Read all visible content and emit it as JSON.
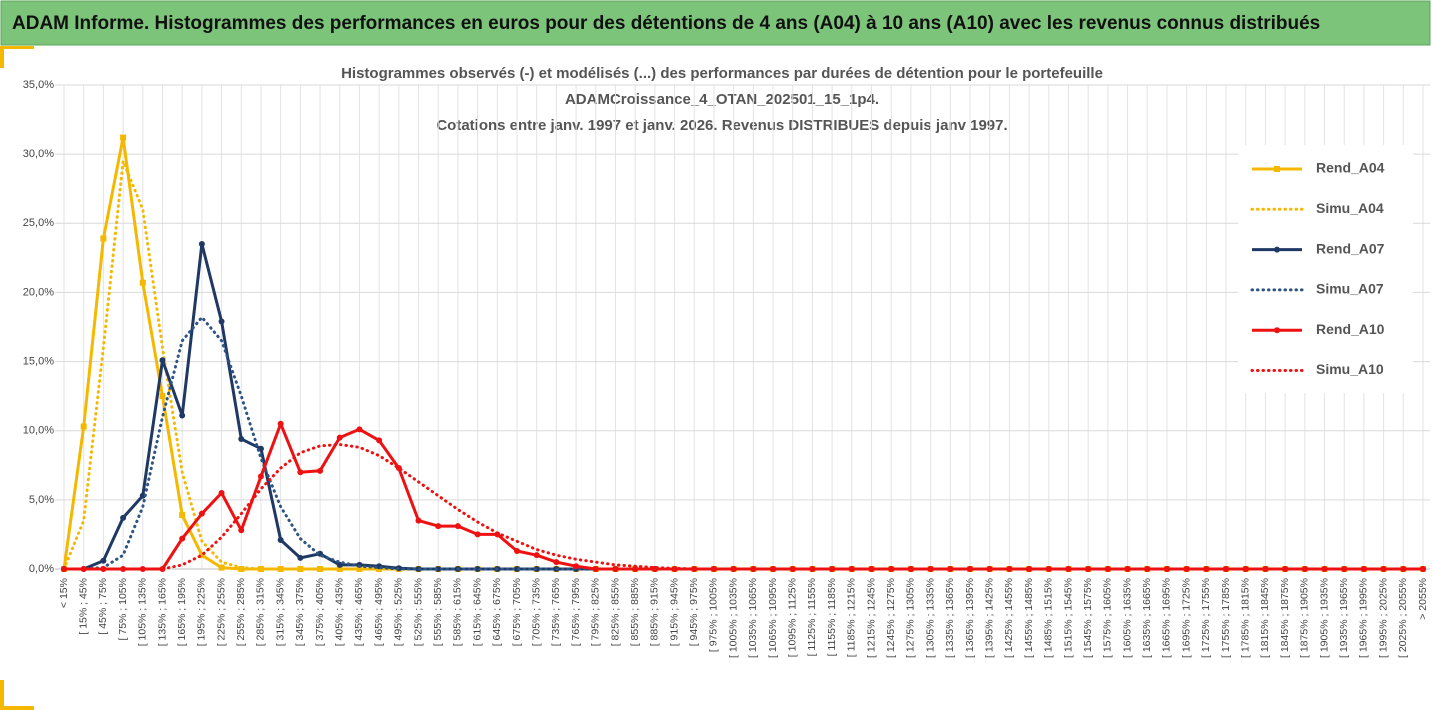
{
  "page_title": "ADAM Informe. Histogrammes des performances en euros pour des détentions de 4 ans (A04) à 10 ans (A10) avec les revenus connus distribués",
  "chart_data": {
    "type": "line",
    "title": [
      "Histogrammes observés (-) et modélisés (...) des performances par durées de détention pour le portefeuille",
      "ADAMCroissance_4_OTAN_202501_15_1p4.",
      "Cotations entre janv. 1997 et janv. 2026. Revenus DISTRIBUES depuis janv 1997."
    ],
    "categories": [
      "< 15%",
      "[ 15% ; 45%",
      "[ 45% ; 75%",
      "[ 75% ; 105%",
      "[ 105% ; 135%",
      "[ 135% ; 165%",
      "[ 165% ; 195%",
      "[ 195% ; 225%",
      "[ 225% ; 255%",
      "[ 255% ; 285%",
      "[ 285% ; 315%",
      "[ 315% ; 345%",
      "[ 345% ; 375%",
      "[ 375% ; 405%",
      "[ 405% ; 435%",
      "[ 435% ; 465%",
      "[ 465% ; 495%",
      "[ 495% ; 525%",
      "[ 525% ; 555%",
      "[ 555% ; 585%",
      "[ 585% ; 615%",
      "[ 615% ; 645%",
      "[ 645% ; 675%",
      "[ 675% ; 705%",
      "[ 705% ; 735%",
      "[ 735% ; 765%",
      "[ 765% ; 795%",
      "[ 795% ; 825%",
      "[ 825% ; 855%",
      "[ 855% ; 885%",
      "[ 885% ; 915%",
      "[ 915% ; 945%",
      "[ 945% ; 975%",
      "[ 975% ; 1005%",
      "[ 1005% ; 1035%",
      "[ 1035% ; 1065%",
      "[ 1065% ; 1095%",
      "[ 1095% ; 1125%",
      "[ 1125% ; 1155%",
      "[ 1155% ; 1185%",
      "[ 1185% ; 1215%",
      "[ 1215% ; 1245%",
      "[ 1245% ; 1275%",
      "[ 1275% ; 1305%",
      "[ 1305% ; 1335%",
      "[ 1335% ; 1365%",
      "[ 1365% ; 1395%",
      "[ 1395% ; 1425%",
      "[ 1425% ; 1455%",
      "[ 1455% ; 1485%",
      "[ 1485% ; 1515%",
      "[ 1515% ; 1545%",
      "[ 1545% ; 1575%",
      "[ 1575% ; 1605%",
      "[ 1605% ; 1635%",
      "[ 1635% ; 1665%",
      "[ 1665% ; 1695%",
      "[ 1695% ; 1725%",
      "[ 1725% ; 1755%",
      "[ 1755% ; 1785%",
      "[ 1785% ; 1815%",
      "[ 1815% ; 1845%",
      "[ 1845% ; 1875%",
      "[ 1875% ; 1905%",
      "[ 1905% ; 1935%",
      "[ 1935% ; 1965%",
      "[ 1965% ; 1995%",
      "[ 1995% ; 2025%",
      "[ 2025% ; 2055%",
      "> 2055%"
    ],
    "series": [
      {
        "name": "Rend_A04",
        "color": "#f5b800",
        "style": "solid",
        "marker": "square",
        "values": [
          0,
          10.3,
          23.9,
          31.2,
          20.7,
          12.5,
          3.9,
          1.0,
          0.1,
          0,
          0,
          0,
          0,
          0,
          0,
          0,
          0,
          0,
          0,
          0,
          0,
          0,
          0,
          0,
          0,
          0,
          0,
          0,
          0,
          0,
          0,
          0,
          0,
          0,
          0,
          0,
          0,
          0,
          0,
          0,
          0,
          0,
          0,
          0,
          0,
          0,
          0,
          0,
          0,
          0,
          0,
          0,
          0,
          0,
          0,
          0,
          0,
          0,
          0,
          0,
          0,
          0,
          0,
          0,
          0,
          0,
          0,
          0,
          0,
          0
        ]
      },
      {
        "name": "Simu_A04",
        "color": "#f5b800",
        "style": "dotted",
        "values": [
          0,
          3.5,
          16,
          29.5,
          26,
          16,
          7,
          2,
          0.5,
          0.1,
          0,
          0,
          0,
          0,
          0,
          0,
          0,
          0,
          0,
          0,
          0,
          0,
          0,
          0,
          0,
          0,
          0,
          0,
          0,
          0,
          0,
          0,
          0,
          0,
          0,
          0,
          0,
          0,
          0,
          0,
          0,
          0,
          0,
          0,
          0,
          0,
          0,
          0,
          0,
          0,
          0,
          0,
          0,
          0,
          0,
          0,
          0,
          0,
          0,
          0,
          0,
          0,
          0,
          0,
          0,
          0,
          0,
          0,
          0,
          0
        ]
      },
      {
        "name": "Rend_A07",
        "color": "#1f3864",
        "style": "solid",
        "marker": "circle",
        "values": [
          0,
          0,
          0.6,
          3.7,
          5.3,
          15.1,
          11.1,
          23.5,
          17.9,
          9.4,
          8.7,
          2.1,
          0.8,
          1.1,
          0.3,
          0.3,
          0.2,
          0.05,
          0,
          0,
          0,
          0,
          0,
          0,
          0,
          0,
          0,
          0,
          0,
          0,
          0,
          0,
          0,
          0,
          0,
          0,
          0,
          0,
          0,
          0,
          0,
          0,
          0,
          0,
          0,
          0,
          0,
          0,
          0,
          0,
          0,
          0,
          0,
          0,
          0,
          0,
          0,
          0,
          0,
          0,
          0,
          0,
          0,
          0,
          0,
          0,
          0,
          0,
          0,
          0
        ]
      },
      {
        "name": "Simu_A07",
        "color": "#2e5484",
        "style": "dotted",
        "values": [
          0,
          0,
          0.1,
          1,
          4.5,
          11,
          16.5,
          18.2,
          16.5,
          12.5,
          8,
          4.5,
          2.2,
          1,
          0.5,
          0.2,
          0.1,
          0,
          0,
          0,
          0,
          0,
          0,
          0,
          0,
          0,
          0,
          0,
          0,
          0,
          0,
          0,
          0,
          0,
          0,
          0,
          0,
          0,
          0,
          0,
          0,
          0,
          0,
          0,
          0,
          0,
          0,
          0,
          0,
          0,
          0,
          0,
          0,
          0,
          0,
          0,
          0,
          0,
          0,
          0,
          0,
          0,
          0,
          0,
          0,
          0,
          0,
          0,
          0,
          0
        ]
      },
      {
        "name": "Rend_A10",
        "color": "#ee1111",
        "style": "solid",
        "marker": "circle",
        "values": [
          0,
          0,
          0,
          0,
          0,
          0,
          2.2,
          4.0,
          5.5,
          2.8,
          6.7,
          10.5,
          7.0,
          7.1,
          9.5,
          10.1,
          9.3,
          7.3,
          3.5,
          3.1,
          3.1,
          2.5,
          2.5,
          1.3,
          1.0,
          0.5,
          0.2,
          0,
          0,
          0,
          0,
          0,
          0,
          0,
          0,
          0,
          0,
          0,
          0,
          0,
          0,
          0,
          0,
          0,
          0,
          0,
          0,
          0,
          0,
          0,
          0,
          0,
          0,
          0,
          0,
          0,
          0,
          0,
          0,
          0,
          0,
          0,
          0,
          0,
          0,
          0,
          0,
          0,
          0,
          0
        ]
      },
      {
        "name": "Simu_A10",
        "color": "#ee1111",
        "style": "dotted",
        "values": [
          0,
          0,
          0,
          0,
          0,
          0,
          0.3,
          1,
          2.3,
          4,
          5.8,
          7.3,
          8.4,
          8.9,
          9.0,
          8.8,
          8.2,
          7.3,
          6.3,
          5.3,
          4.3,
          3.4,
          2.6,
          2.0,
          1.4,
          1.0,
          0.7,
          0.5,
          0.3,
          0.2,
          0.1,
          0.05,
          0,
          0,
          0,
          0,
          0,
          0,
          0,
          0,
          0,
          0,
          0,
          0,
          0,
          0,
          0,
          0,
          0,
          0,
          0,
          0,
          0,
          0,
          0,
          0,
          0,
          0,
          0,
          0,
          0,
          0,
          0,
          0,
          0,
          0,
          0,
          0,
          0,
          0
        ]
      }
    ],
    "ylim": [
      0,
      35
    ],
    "yticks": [
      {
        "value": 0,
        "label": "0,0%"
      },
      {
        "value": 5,
        "label": "5,0%"
      },
      {
        "value": 10,
        "label": "10,0%"
      },
      {
        "value": 15,
        "label": "15,0%"
      },
      {
        "value": 20,
        "label": "20,0%"
      },
      {
        "value": 25,
        "label": "25,0%"
      },
      {
        "value": 30,
        "label": "30,0%"
      },
      {
        "value": 35,
        "label": "35,0%"
      }
    ],
    "grid": true,
    "legend": "right"
  }
}
